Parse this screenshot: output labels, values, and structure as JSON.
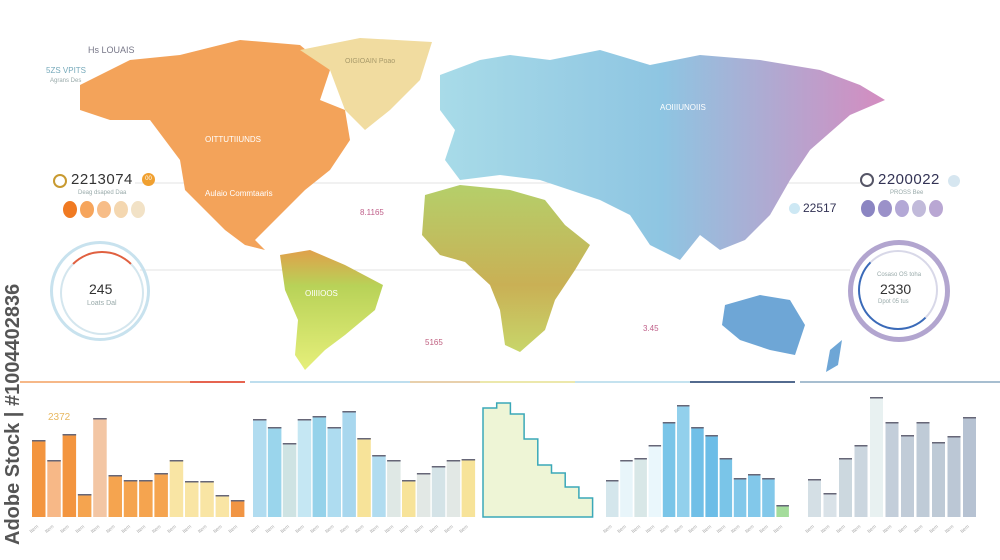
{
  "header": {
    "title": "Hs LOUAIS",
    "subtitle": "5ZS VPITS",
    "caption": "Agrans Des"
  },
  "map": {
    "labels": {
      "north_america": "OITTUTIIUNDS",
      "usa": "Aulaio Commtaaris",
      "greenland": "OIGIOAIN Poao",
      "south_america": "OIIIIOOS",
      "asia": "AOIIIUNOIIS"
    },
    "center_values": [
      "8.1165",
      "5165",
      "3.45"
    ],
    "colors": {
      "north_america": "#f3a35a",
      "greenland": "#f1dca0",
      "south_america": "#b8d258",
      "africa": "#b7cf6a",
      "europe": "#a8dbe8",
      "asia_east": "#c98ec4",
      "australia": "#6ea6d6"
    }
  },
  "left_panel": {
    "stat_value": "2213074",
    "stat_caption": "Deag dsaped Daa",
    "badge": "00",
    "swatches": [
      "#f07a22",
      "#f6a55c",
      "#f7bd88",
      "#f4d7b0",
      "#f2e2c6"
    ],
    "donut_value": "245",
    "donut_caption": "Loats Dal",
    "donut_progress": 0.12
  },
  "right_panel": {
    "stat_value": "2200022",
    "stat_caption": "PROSS Bee",
    "sub_value": "22517",
    "swatches": [
      "#8b85c2",
      "#9b91c9",
      "#b3a8d6",
      "#c1bada",
      "#b9a7d3"
    ],
    "donut_value": "2330",
    "donut_caption_top": "Cosaso OS toha",
    "donut_caption_bottom": "Dpot 05 tus",
    "donut_progress": 0.45
  },
  "watermark": "Adobe Stock | #1004402836",
  "chart_data": [
    {
      "type": "bar",
      "title": "2372",
      "values": [
        77,
        57,
        83,
        23,
        99,
        42,
        37,
        37,
        44,
        57,
        36,
        36,
        22,
        17
      ],
      "colors": [
        "#f28a2a",
        "#f6b07a",
        "#f28a2a",
        "#f49a3c",
        "#f2c09a",
        "#f49a3c",
        "#f49a3c",
        "#f49a3c",
        "#f49a3c",
        "#f8e29a",
        "#f8e29a",
        "#f8e29a",
        "#f8e29a",
        "#f08a30"
      ]
    },
    {
      "type": "bar",
      "values": [
        98,
        90,
        74,
        98,
        101,
        90,
        106,
        79,
        62,
        57,
        37,
        44,
        51,
        57,
        58
      ],
      "colors": [
        "#a8d8ee",
        "#8fd0ea",
        "#c9e0e0",
        "#bfe4f2",
        "#8acde8",
        "#a5d8ee",
        "#9ed3ec",
        "#f6e08e",
        "#a8d8ee",
        "#dce6e2",
        "#f6e08e",
        "#dfe6e2",
        "#cfe0e4",
        "#dfe6e2",
        "#f6e08e"
      ]
    },
    {
      "type": "area",
      "values": [
        109,
        114,
        103,
        78,
        52,
        44,
        30,
        19
      ]
    },
    {
      "type": "bar",
      "values": [
        37,
        57,
        59,
        72,
        95,
        112,
        90,
        82,
        59,
        39,
        43,
        39,
        12
      ],
      "colors": [
        "#cfe3ea",
        "#e6f4fa",
        "#d4e4e4",
        "#e8f6fc",
        "#6cbfe6",
        "#86cbea",
        "#60b8e4",
        "#5cb6e4",
        "#6cbfe6",
        "#74c2e8",
        "#74c2e8",
        "#74c2e8",
        "#9ad890"
      ]
    },
    {
      "type": "bar",
      "values": [
        38,
        24,
        59,
        72,
        120,
        95,
        82,
        95,
        75,
        81,
        100
      ],
      "colors": [
        "#cfdbe2",
        "#d5dfe5",
        "#c7d4dc",
        "#c5d2dc",
        "#e6eff0",
        "#bcc9d6",
        "#bac6d4",
        "#b8c5d3",
        "#b7c4d2",
        "#b4c1d0",
        "#aebbcd"
      ]
    }
  ]
}
